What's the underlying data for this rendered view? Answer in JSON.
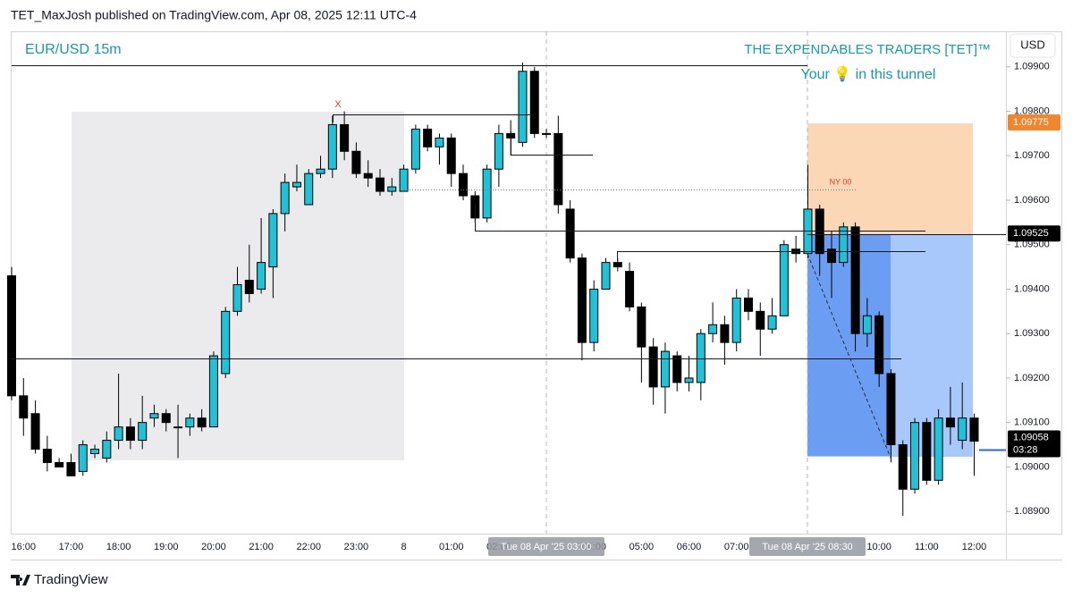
{
  "header": "TET_MaxJosh published on TradingView.com, Apr 08, 2025 12:11 UTC-4",
  "footer": "TradingView",
  "chart_data": {
    "type": "candlestick",
    "title": "EUR/USD 15m",
    "watermark": "THE EXPENDABLES TRADERS [TET]™",
    "tagline": "Your 💡 in this tunnel",
    "annotations": [
      "X",
      "NY 00"
    ],
    "currency": "USD",
    "countdown": "03:28",
    "crosshair_labels": [
      "Tue 08 Apr '25 03:00",
      "Tue 08 Apr '25 08:30"
    ],
    "up_color": "#22c1d6",
    "down_color": "#000000",
    "ylim": [
      1.0885,
      1.0998
    ],
    "yticks": [
      {
        "value": 1.089,
        "label": "1.08900"
      },
      {
        "value": 1.09,
        "label": "1.09000"
      },
      {
        "value": 1.091,
        "label": "1.09100"
      },
      {
        "value": 1.092,
        "label": "1.09200"
      },
      {
        "value": 1.093,
        "label": "1.09300"
      },
      {
        "value": 1.094,
        "label": "1.09400"
      },
      {
        "value": 1.095,
        "label": "1.09500"
      },
      {
        "value": 1.096,
        "label": "1.09600"
      },
      {
        "value": 1.097,
        "label": "1.09700"
      },
      {
        "value": 1.098,
        "label": "1.09800"
      },
      {
        "value": 1.099,
        "label": "1.09900"
      }
    ],
    "price_tags": [
      {
        "value": 1.09775,
        "color": "#f0862d"
      },
      {
        "value": 1.09525,
        "color": "#000000"
      }
    ],
    "categories": [
      null,
      "16:00",
      null,
      null,
      null,
      "17:00",
      null,
      null,
      null,
      "18:00",
      null,
      null,
      null,
      "19:00",
      null,
      null,
      null,
      "20:00",
      null,
      null,
      null,
      "21:00",
      null,
      null,
      null,
      "22:00",
      null,
      null,
      null,
      "23:00",
      null,
      null,
      null,
      "8",
      null,
      null,
      null,
      "01:00",
      null,
      null,
      null,
      "02:00",
      null,
      null,
      null,
      null,
      null,
      null,
      null,
      "04:00",
      null,
      null,
      null,
      "05:00",
      null,
      null,
      null,
      "06:00",
      null,
      null,
      null,
      "07:00",
      null,
      null,
      null,
      null,
      null,
      null,
      null,
      null,
      null,
      null,
      null,
      "10:00",
      null,
      null,
      null,
      "11:00",
      null,
      null,
      null,
      "12:00"
    ],
    "open": [
      1.0943,
      1.0916,
      1.0912,
      1.0904,
      1.0901,
      1.0901,
      1.0899,
      1.0903,
      1.0902,
      1.0906,
      1.0909,
      1.0906,
      1.0911,
      1.0912,
      1.0909,
      1.0909,
      1.0911,
      1.0909,
      1.0921,
      1.0935,
      1.0942,
      1.094,
      1.0945,
      1.0957,
      1.0963,
      1.0959,
      1.0966,
      1.0967,
      1.0977,
      1.0971,
      1.0966,
      1.0965,
      1.0962,
      1.0962,
      1.0967,
      1.0976,
      1.0972,
      1.0974,
      1.0966,
      1.0961,
      1.0956,
      1.0967,
      1.0975,
      1.0973,
      1.0989,
      1.0975,
      1.0975,
      1.0958,
      1.0947,
      1.0928,
      1.094,
      1.0946,
      1.0944,
      1.0936,
      1.0927,
      1.0918,
      1.0925,
      1.0919,
      1.0919,
      1.093,
      1.0932,
      1.0928,
      1.0938,
      1.0935,
      1.0931,
      1.0934,
      1.0949,
      1.0948,
      1.0958,
      1.0949,
      1.0946,
      1.0954,
      1.093,
      1.0934,
      1.0921,
      1.0905,
      1.0895,
      1.091,
      1.0897,
      1.0911,
      1.0906,
      1.0911
    ],
    "high": [
      1.0945,
      1.092,
      1.0915,
      1.0907,
      1.0902,
      1.0903,
      1.0906,
      1.0905,
      1.0908,
      1.0921,
      1.0911,
      1.0916,
      1.0914,
      1.0913,
      1.0914,
      1.0912,
      1.0913,
      1.0926,
      1.0936,
      1.0945,
      1.095,
      1.0956,
      1.0958,
      1.0966,
      1.0968,
      1.0967,
      1.097,
      1.0979,
      1.098,
      1.0973,
      1.0969,
      1.0967,
      1.0965,
      1.0968,
      1.0977,
      1.0977,
      1.0975,
      1.0975,
      1.0968,
      1.0962,
      1.0968,
      1.0977,
      1.0978,
      1.0991,
      1.099,
      1.0976,
      1.0979,
      1.096,
      1.0948,
      1.0942,
      1.0947,
      1.0947,
      1.0946,
      1.0937,
      1.0929,
      1.0928,
      1.0926,
      1.0925,
      1.0931,
      1.0937,
      1.0934,
      1.094,
      1.094,
      1.0937,
      1.0938,
      1.0951,
      1.0952,
      1.0968,
      1.0959,
      1.0953,
      1.0955,
      1.0955,
      1.0938,
      1.0935,
      1.0922,
      1.0906,
      1.0911,
      1.0911,
      1.0913,
      1.0918,
      1.0919,
      1.0912
    ],
    "low": [
      1.0915,
      1.0907,
      1.0903,
      1.0899,
      1.09,
      1.0898,
      1.0898,
      1.0902,
      1.0901,
      1.0904,
      1.0904,
      1.0904,
      1.0909,
      1.0908,
      1.0902,
      1.0907,
      1.0908,
      1.0909,
      1.092,
      1.0934,
      1.0937,
      1.0939,
      1.0938,
      1.0953,
      1.0962,
      1.0959,
      1.0965,
      1.0965,
      1.0969,
      1.0965,
      1.0963,
      1.0961,
      1.0961,
      1.0962,
      1.0966,
      1.0971,
      1.0968,
      1.0963,
      1.096,
      1.0955,
      1.0955,
      1.0963,
      1.097,
      1.0972,
      1.0974,
      1.0974,
      1.0957,
      1.0946,
      1.0924,
      1.0926,
      1.094,
      1.0944,
      1.0935,
      1.0919,
      1.0914,
      1.0912,
      1.0917,
      1.0917,
      1.0915,
      1.0928,
      1.0923,
      1.0926,
      1.0933,
      1.0925,
      1.093,
      1.0934,
      1.0946,
      1.0947,
      1.0943,
      1.0938,
      1.0945,
      1.0926,
      1.0927,
      1.0918,
      1.0901,
      1.0889,
      1.0894,
      1.0896,
      1.0896,
      1.0905,
      1.0904,
      1.0898
    ],
    "close": [
      1.0916,
      1.0911,
      1.0904,
      1.0901,
      1.09,
      1.0898,
      1.0905,
      1.0904,
      1.0906,
      1.0909,
      1.0906,
      1.091,
      1.0912,
      1.091,
      1.0909,
      1.0911,
      1.0909,
      1.0925,
      1.0935,
      1.0941,
      1.0939,
      1.0946,
      1.0957,
      1.0964,
      1.0964,
      1.0966,
      1.0967,
      1.0977,
      1.0971,
      1.0966,
      1.0965,
      1.0962,
      1.0963,
      1.0967,
      1.0976,
      1.0972,
      1.0974,
      1.0966,
      1.0961,
      1.0956,
      1.0967,
      1.0975,
      1.0974,
      1.0989,
      1.0975,
      1.0975,
      1.0959,
      1.0947,
      1.0928,
      1.094,
      1.0946,
      1.0945,
      1.0936,
      1.0927,
      1.0918,
      1.0926,
      1.0919,
      1.092,
      1.093,
      1.0932,
      1.0928,
      1.0938,
      1.0935,
      1.0931,
      1.0934,
      1.095,
      1.0948,
      1.0958,
      1.0948,
      1.0946,
      1.0954,
      1.093,
      1.0934,
      1.0921,
      1.0905,
      1.0895,
      1.091,
      1.0897,
      1.0911,
      1.0909,
      1.0911,
      1.09058
    ]
  }
}
